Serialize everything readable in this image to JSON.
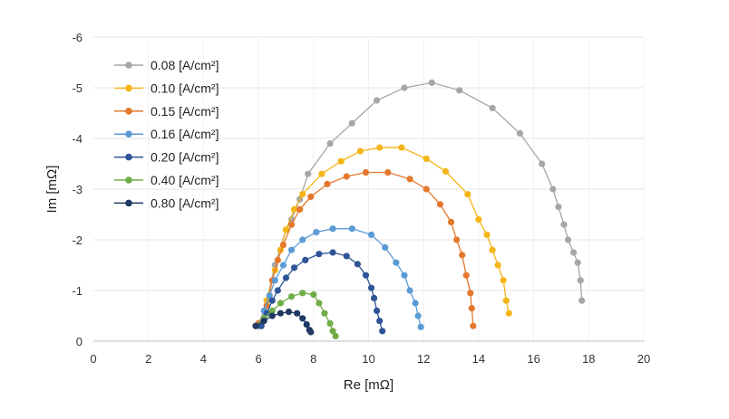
{
  "chart_data": {
    "type": "scatter",
    "xlabel": "Re [mΩ]",
    "ylabel": "Im [mΩ]",
    "xlim": [
      0,
      20
    ],
    "ylim": [
      0,
      -6
    ],
    "x_ticks": [
      "0",
      "2",
      "4",
      "6",
      "8",
      "10",
      "12",
      "14",
      "16",
      "18",
      "20"
    ],
    "y_ticks": [
      "0",
      "-1",
      "-2",
      "-3",
      "-4",
      "-5",
      "-6"
    ],
    "grid": "horizontal",
    "legend_position": "top-left",
    "series": [
      {
        "name": "0.08 [A/cm²]",
        "color": "#a6a6a6",
        "points": [
          [
            6.1,
            -0.3
          ],
          [
            6.3,
            -0.8
          ],
          [
            6.6,
            -1.5
          ],
          [
            7.0,
            -2.2
          ],
          [
            7.2,
            -2.4
          ],
          [
            7.5,
            -2.8
          ],
          [
            7.8,
            -3.3
          ],
          [
            8.6,
            -3.9
          ],
          [
            9.4,
            -4.3
          ],
          [
            10.3,
            -4.75
          ],
          [
            11.3,
            -5.0
          ],
          [
            12.3,
            -5.1
          ],
          [
            13.3,
            -4.95
          ],
          [
            14.5,
            -4.6
          ],
          [
            15.5,
            -4.1
          ],
          [
            16.3,
            -3.5
          ],
          [
            16.7,
            -3.0
          ],
          [
            16.9,
            -2.65
          ],
          [
            17.1,
            -2.3
          ],
          [
            17.25,
            -2.0
          ],
          [
            17.45,
            -1.75
          ],
          [
            17.6,
            -1.55
          ],
          [
            17.7,
            -1.2
          ],
          [
            17.75,
            -0.8
          ]
        ]
      },
      {
        "name": "0.10 [A/cm²]",
        "color": "#f5b418",
        "points": [
          [
            6.1,
            -0.3
          ],
          [
            6.3,
            -0.8
          ],
          [
            6.6,
            -1.4
          ],
          [
            6.8,
            -1.8
          ],
          [
            7.0,
            -2.2
          ],
          [
            7.3,
            -2.6
          ],
          [
            7.6,
            -2.9
          ],
          [
            8.3,
            -3.3
          ],
          [
            9.0,
            -3.55
          ],
          [
            9.7,
            -3.75
          ],
          [
            10.4,
            -3.82
          ],
          [
            11.2,
            -3.82
          ],
          [
            12.1,
            -3.6
          ],
          [
            12.8,
            -3.35
          ],
          [
            13.6,
            -2.9
          ],
          [
            14.0,
            -2.4
          ],
          [
            14.3,
            -2.1
          ],
          [
            14.5,
            -1.8
          ],
          [
            14.7,
            -1.5
          ],
          [
            14.9,
            -1.2
          ],
          [
            15.0,
            -0.8
          ],
          [
            15.1,
            -0.55
          ]
        ]
      },
      {
        "name": "0.15 [A/cm²]",
        "color": "#e4782c",
        "points": [
          [
            6.0,
            -0.35
          ],
          [
            6.3,
            -0.7
          ],
          [
            6.5,
            -1.2
          ],
          [
            6.7,
            -1.6
          ],
          [
            6.9,
            -1.9
          ],
          [
            7.2,
            -2.3
          ],
          [
            7.5,
            -2.6
          ],
          [
            7.9,
            -2.85
          ],
          [
            8.5,
            -3.1
          ],
          [
            9.2,
            -3.25
          ],
          [
            9.9,
            -3.33
          ],
          [
            10.7,
            -3.33
          ],
          [
            11.5,
            -3.2
          ],
          [
            12.1,
            -3.0
          ],
          [
            12.6,
            -2.7
          ],
          [
            13.0,
            -2.35
          ],
          [
            13.2,
            -2.0
          ],
          [
            13.4,
            -1.7
          ],
          [
            13.55,
            -1.3
          ],
          [
            13.7,
            -0.95
          ],
          [
            13.75,
            -0.65
          ],
          [
            13.8,
            -0.3
          ]
        ]
      },
      {
        "name": "0.16 [A/cm²]",
        "color": "#5b9bd5",
        "points": [
          [
            6.0,
            -0.3
          ],
          [
            6.2,
            -0.6
          ],
          [
            6.4,
            -0.9
          ],
          [
            6.6,
            -1.2
          ],
          [
            6.9,
            -1.5
          ],
          [
            7.2,
            -1.8
          ],
          [
            7.6,
            -2.0
          ],
          [
            8.1,
            -2.15
          ],
          [
            8.7,
            -2.22
          ],
          [
            9.4,
            -2.22
          ],
          [
            10.1,
            -2.1
          ],
          [
            10.6,
            -1.85
          ],
          [
            11.0,
            -1.55
          ],
          [
            11.3,
            -1.3
          ],
          [
            11.5,
            -1.0
          ],
          [
            11.7,
            -0.75
          ],
          [
            11.8,
            -0.5
          ],
          [
            11.9,
            -0.28
          ]
        ]
      },
      {
        "name": "0.20 [A/cm²]",
        "color": "#2f5597",
        "points": [
          [
            6.1,
            -0.3
          ],
          [
            6.3,
            -0.55
          ],
          [
            6.5,
            -0.8
          ],
          [
            6.7,
            -1.0
          ],
          [
            7.0,
            -1.25
          ],
          [
            7.3,
            -1.45
          ],
          [
            7.7,
            -1.6
          ],
          [
            8.2,
            -1.72
          ],
          [
            8.7,
            -1.75
          ],
          [
            9.2,
            -1.68
          ],
          [
            9.6,
            -1.52
          ],
          [
            9.9,
            -1.3
          ],
          [
            10.1,
            -1.05
          ],
          [
            10.2,
            -0.85
          ],
          [
            10.3,
            -0.6
          ],
          [
            10.4,
            -0.4
          ],
          [
            10.5,
            -0.2
          ]
        ]
      },
      {
        "name": "0.40 [A/cm²]",
        "color": "#70ad47",
        "points": [
          [
            5.9,
            -0.3
          ],
          [
            6.2,
            -0.45
          ],
          [
            6.5,
            -0.6
          ],
          [
            6.8,
            -0.75
          ],
          [
            7.2,
            -0.88
          ],
          [
            7.6,
            -0.95
          ],
          [
            8.0,
            -0.92
          ],
          [
            8.2,
            -0.75
          ],
          [
            8.4,
            -0.55
          ],
          [
            8.6,
            -0.35
          ],
          [
            8.7,
            -0.2
          ],
          [
            8.8,
            -0.1
          ]
        ]
      },
      {
        "name": "0.80 [A/cm²]",
        "color": "#1f3864",
        "points": [
          [
            5.9,
            -0.3
          ],
          [
            6.2,
            -0.4
          ],
          [
            6.5,
            -0.5
          ],
          [
            6.8,
            -0.55
          ],
          [
            7.1,
            -0.58
          ],
          [
            7.4,
            -0.55
          ],
          [
            7.6,
            -0.45
          ],
          [
            7.75,
            -0.33
          ],
          [
            7.85,
            -0.22
          ],
          [
            7.9,
            -0.18
          ]
        ]
      }
    ]
  }
}
